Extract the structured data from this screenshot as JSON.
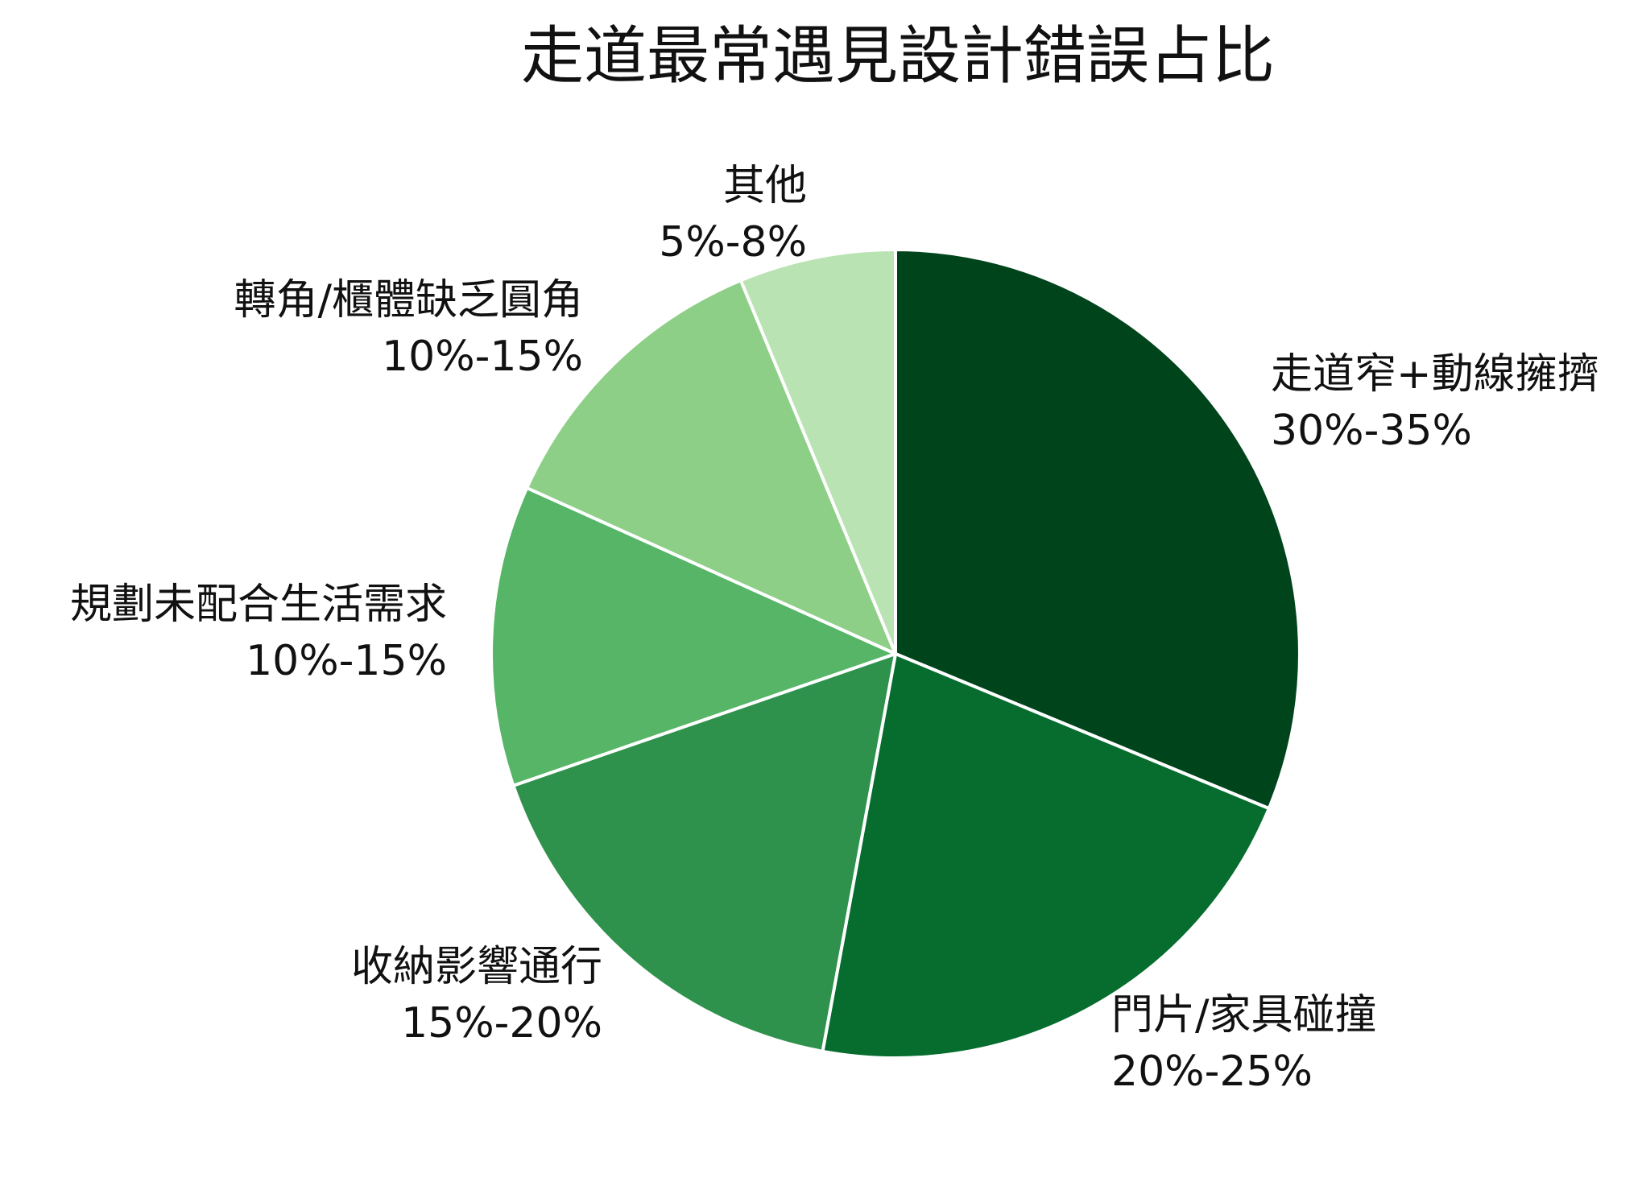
{
  "chart_data": {
    "type": "pie",
    "title": "走道最常遇見設計錯誤占比",
    "slices": [
      {
        "name": "走道窄+動線擁擠",
        "range_label": "30%-35%",
        "value": 32.5,
        "color": "#00441b"
      },
      {
        "name": "門片/家具碰撞",
        "range_label": "20%-25%",
        "value": 22.5,
        "color": "#066d2f"
      },
      {
        "name": "收納影響通行",
        "range_label": "15%-20%",
        "value": 17.5,
        "color": "#2e924c"
      },
      {
        "name": "規劃未配合生活需求",
        "range_label": "10%-15%",
        "value": 12.5,
        "color": "#56b567"
      },
      {
        "name": "轉角/櫃體缺乏圓角",
        "range_label": "10%-15%",
        "value": 12.5,
        "color": "#8ecf87"
      },
      {
        "name": "其他",
        "range_label": "5%-8%",
        "value": 6.5,
        "color": "#b9e3b2"
      }
    ],
    "start_angle": "12 o'clock",
    "direction": "clockwise",
    "legend": "none"
  }
}
